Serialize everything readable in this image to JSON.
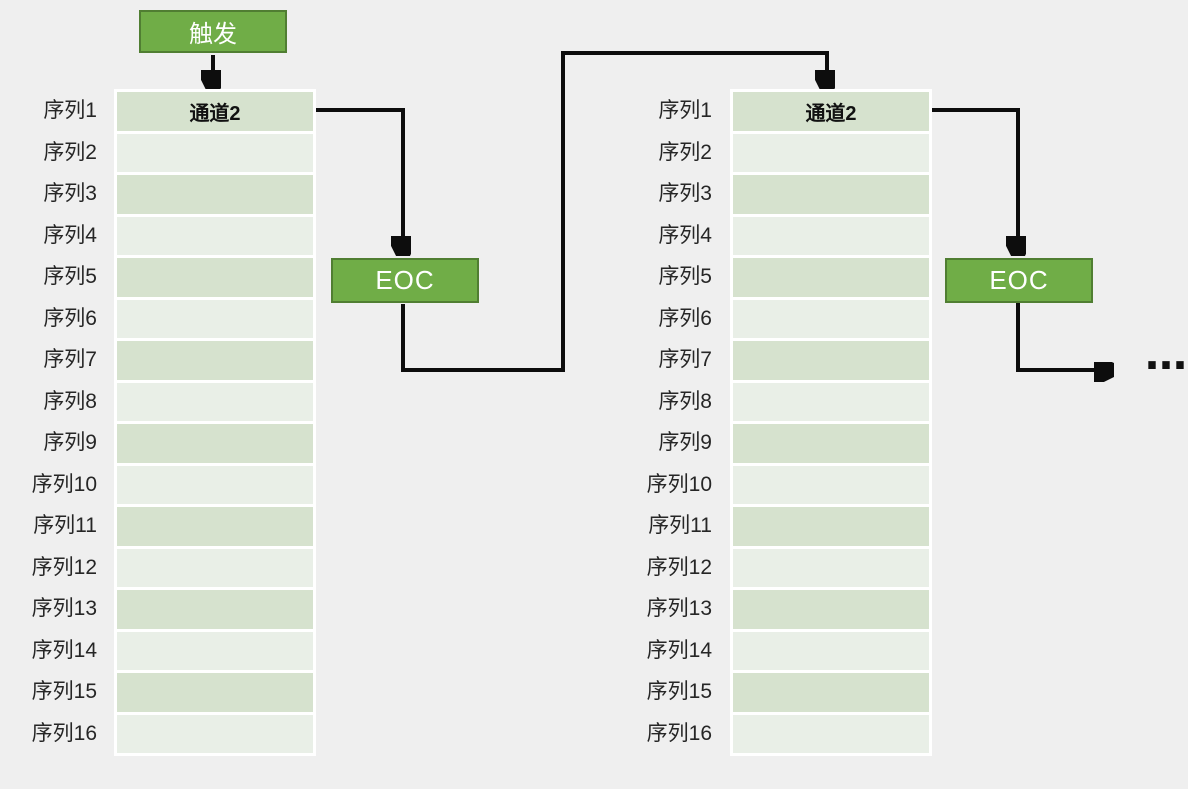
{
  "diagram": {
    "trigger": {
      "label": "触发"
    },
    "eoc": {
      "label": "EOC"
    },
    "ellipsis": "…",
    "row_labels": [
      "序列1",
      "序列2",
      "序列3",
      "序列4",
      "序列5",
      "序列6",
      "序列7",
      "序列8",
      "序列9",
      "序列10",
      "序列11",
      "序列12",
      "序列13",
      "序列14",
      "序列15",
      "序列16"
    ],
    "tables": [
      {
        "channel": "通道2"
      },
      {
        "channel": "通道2"
      }
    ],
    "colors": {
      "background": "#efefef",
      "row_dark": "#d6e2ce",
      "row_light": "#e9efe7",
      "box_fill": "#70ad47",
      "box_border": "#507e32",
      "arrow": "#0d0d0d",
      "label_text": "#262626"
    }
  }
}
